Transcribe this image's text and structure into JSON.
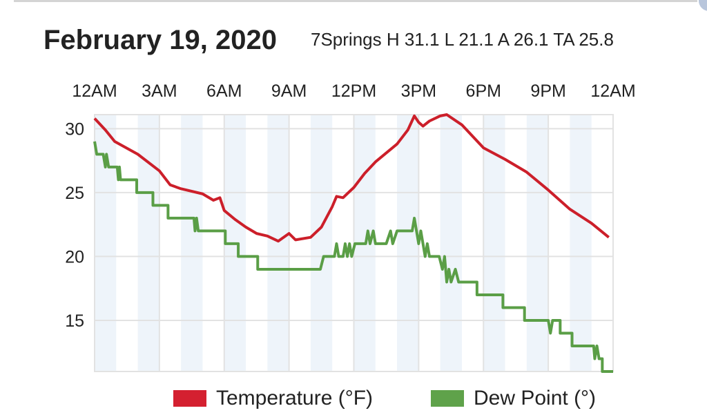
{
  "header": {
    "title": "February 19, 2020",
    "subtitle": "7Springs H 31.1 L 21.1 A 26.1 TA 25.8"
  },
  "chart_data": {
    "type": "line",
    "title": "February 19, 2020",
    "subtitle": "7Springs H 31.1 L 21.1 A 26.1 TA 25.8",
    "xlabel": "",
    "ylabel": "",
    "xlim": [
      0,
      24
    ],
    "ylim": [
      11,
      31.1
    ],
    "x_unit": "hours since midnight",
    "x_ticks": [
      0,
      3,
      6,
      9,
      12,
      15,
      18,
      21,
      24
    ],
    "x_tick_labels": [
      "12AM",
      "3AM",
      "6AM",
      "9AM",
      "12PM",
      "3PM",
      "6PM",
      "9PM",
      "12AM"
    ],
    "y_ticks": [
      15,
      20,
      25,
      30
    ],
    "y_tick_labels": [
      "15",
      "20",
      "25",
      "30"
    ],
    "grid": true,
    "shaded_hour_bands": [
      [
        0,
        1
      ],
      [
        2,
        3
      ],
      [
        4,
        5
      ],
      [
        6,
        7
      ],
      [
        8,
        9
      ],
      [
        10,
        11
      ],
      [
        12,
        13
      ],
      [
        14,
        15
      ],
      [
        16,
        17
      ],
      [
        18,
        19
      ],
      [
        20,
        21
      ],
      [
        22,
        23
      ]
    ],
    "legend_position": "bottom",
    "series": [
      {
        "name": "Temperature (°F)",
        "color": "#cc1f2a",
        "points": [
          [
            0,
            30.8
          ],
          [
            0.5,
            29.9
          ],
          [
            0.93,
            29.0
          ],
          [
            2,
            28.0
          ],
          [
            3,
            26.7
          ],
          [
            3.5,
            25.6
          ],
          [
            4,
            25.3
          ],
          [
            5,
            24.9
          ],
          [
            5.5,
            24.4
          ],
          [
            5.8,
            24.6
          ],
          [
            6,
            23.6
          ],
          [
            6.5,
            22.9
          ],
          [
            7,
            22.3
          ],
          [
            7.5,
            21.8
          ],
          [
            8,
            21.6
          ],
          [
            8.5,
            21.2
          ],
          [
            9,
            21.8
          ],
          [
            9.3,
            21.3
          ],
          [
            10,
            21.5
          ],
          [
            10.5,
            22.3
          ],
          [
            11,
            23.9
          ],
          [
            11.2,
            24.7
          ],
          [
            11.5,
            24.6
          ],
          [
            12,
            25.4
          ],
          [
            12.5,
            26.5
          ],
          [
            13,
            27.4
          ],
          [
            14,
            28.8
          ],
          [
            14.5,
            29.9
          ],
          [
            14.8,
            31.0
          ],
          [
            15,
            30.5
          ],
          [
            15.2,
            30.2
          ],
          [
            15.5,
            30.6
          ],
          [
            16,
            31.0
          ],
          [
            16.3,
            31.1
          ],
          [
            17,
            30.3
          ],
          [
            18,
            28.5
          ],
          [
            19,
            27.6
          ],
          [
            20,
            26.6
          ],
          [
            21,
            25.2
          ],
          [
            22,
            23.7
          ],
          [
            23,
            22.6
          ],
          [
            23.8,
            21.5
          ]
        ]
      },
      {
        "name": "Dew Point (°)",
        "color": "#5a9e46",
        "points": [
          [
            0,
            29
          ],
          [
            0.1,
            28
          ],
          [
            0.4,
            28
          ],
          [
            0.5,
            27
          ],
          [
            0.55,
            28
          ],
          [
            0.65,
            27
          ],
          [
            1.05,
            27
          ],
          [
            1.1,
            26
          ],
          [
            1.15,
            27
          ],
          [
            1.2,
            26
          ],
          [
            1.95,
            26
          ],
          [
            1.95,
            25
          ],
          [
            2.7,
            25
          ],
          [
            2.7,
            24
          ],
          [
            3.4,
            24
          ],
          [
            3.4,
            23
          ],
          [
            4.6,
            23
          ],
          [
            4.65,
            22
          ],
          [
            4.72,
            23
          ],
          [
            4.8,
            22
          ],
          [
            6.05,
            22
          ],
          [
            6.05,
            21
          ],
          [
            6.65,
            21
          ],
          [
            6.65,
            20
          ],
          [
            7.55,
            20
          ],
          [
            7.55,
            19
          ],
          [
            10.45,
            19
          ],
          [
            10.6,
            20
          ],
          [
            11.1,
            20
          ],
          [
            11.2,
            21
          ],
          [
            11.3,
            20
          ],
          [
            11.5,
            20
          ],
          [
            11.6,
            21
          ],
          [
            11.7,
            20
          ],
          [
            11.8,
            21
          ],
          [
            11.9,
            20
          ],
          [
            12.05,
            21
          ],
          [
            12.55,
            21
          ],
          [
            12.65,
            22
          ],
          [
            12.75,
            21
          ],
          [
            12.9,
            22
          ],
          [
            13.0,
            21
          ],
          [
            13.5,
            21
          ],
          [
            13.7,
            22
          ],
          [
            13.8,
            21
          ],
          [
            14,
            22
          ],
          [
            14.7,
            22
          ],
          [
            14.8,
            23
          ],
          [
            14.9,
            22
          ],
          [
            15.0,
            21
          ],
          [
            15.1,
            22
          ],
          [
            15.2,
            21
          ],
          [
            15.3,
            20
          ],
          [
            15.4,
            21
          ],
          [
            15.5,
            20
          ],
          [
            15.95,
            20
          ],
          [
            16.1,
            19
          ],
          [
            16.2,
            20
          ],
          [
            16.3,
            18
          ],
          [
            16.4,
            19
          ],
          [
            16.5,
            18
          ],
          [
            16.7,
            19
          ],
          [
            16.85,
            18
          ],
          [
            17.7,
            18
          ],
          [
            17.7,
            17
          ],
          [
            18.9,
            17
          ],
          [
            18.9,
            16
          ],
          [
            19.9,
            16
          ],
          [
            19.9,
            15
          ],
          [
            21.0,
            15
          ],
          [
            21.1,
            14
          ],
          [
            21.2,
            15
          ],
          [
            21.55,
            15
          ],
          [
            21.55,
            14
          ],
          [
            22.1,
            14
          ],
          [
            22.1,
            13
          ],
          [
            23.1,
            13
          ],
          [
            23.15,
            12
          ],
          [
            23.25,
            13
          ],
          [
            23.35,
            12
          ],
          [
            23.5,
            12
          ],
          [
            23.5,
            11
          ],
          [
            24,
            11
          ]
        ]
      }
    ]
  },
  "legend": {
    "temperature_label": "Temperature (°F)",
    "dewpoint_label": "Dew Point (°)"
  }
}
